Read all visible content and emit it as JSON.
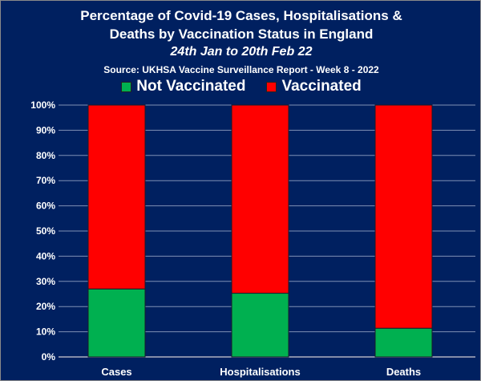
{
  "chart_data": {
    "type": "bar",
    "stacked": true,
    "title": "Percentage of Covid-19 Cases, Hospitalisations & Deaths by Vaccination Status in England",
    "title_line1": "Percentage of Covid-19 Cases, Hospitalisations &",
    "title_line2": "Deaths by Vaccination Status in England",
    "subtitle": "24th Jan to 20th Feb 22",
    "source": "Source: UKHSA Vaccine Surveillance Report - Week 8 - 2022",
    "categories": [
      "Cases",
      "Hospitalisations",
      "Deaths"
    ],
    "series": [
      {
        "name": "Not Vaccinated",
        "color": "#00B050",
        "values": [
          27.0,
          25.3,
          11.4
        ]
      },
      {
        "name": "Vaccinated",
        "color": "#FF0000",
        "values": [
          73.0,
          74.7,
          88.6
        ]
      }
    ],
    "ylim": [
      0,
      100
    ],
    "yticks": [
      "0%",
      "10%",
      "20%",
      "30%",
      "40%",
      "50%",
      "60%",
      "70%",
      "80%",
      "90%",
      "100%"
    ],
    "grid": true,
    "legend": "top",
    "background": "#002060"
  }
}
